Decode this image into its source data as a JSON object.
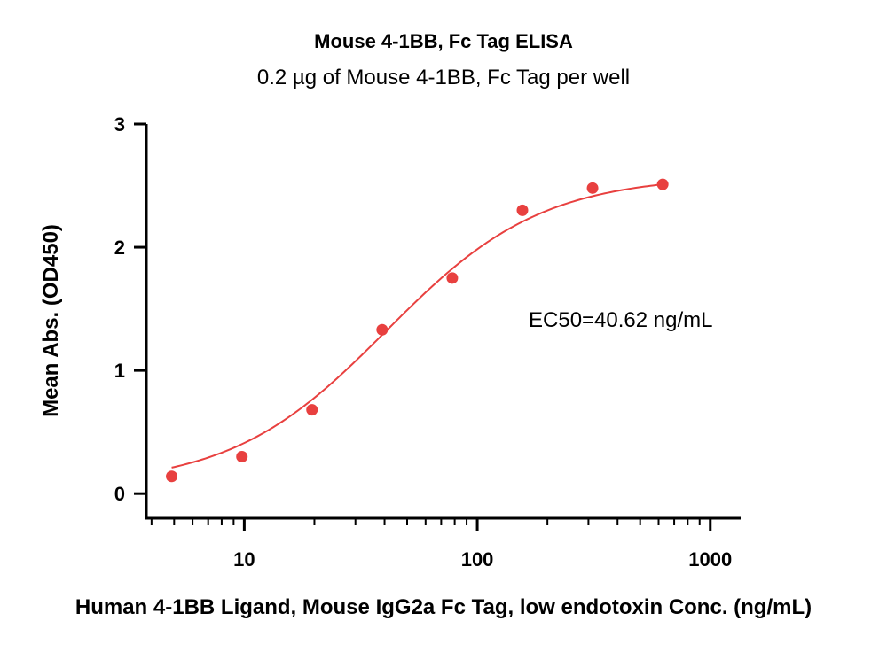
{
  "chart_data": {
    "type": "scatter",
    "title": "Mouse 4-1BB, Fc Tag ELISA",
    "subtitle": "0.2 µg of Mouse 4-1BB, Fc Tag per well",
    "xlabel": "Human 4-1BB Ligand, Mouse IgG2a Fc Tag, low endotoxin Conc. (ng/mL)",
    "ylabel": "Mean Abs. (OD450)",
    "xscale": "log",
    "xlim": [
      3.8,
      1350
    ],
    "ylim": [
      -0.2,
      3
    ],
    "xticks": [
      10,
      100,
      1000
    ],
    "xtick_labels": [
      "10",
      "100",
      "1000"
    ],
    "yticks": [
      0,
      1,
      2,
      3
    ],
    "ytick_labels": [
      "0",
      "1",
      "2",
      "3"
    ],
    "grid": false,
    "legend": "none",
    "annotation": "EC50=40.62 ng/mL",
    "colors": {
      "series": "#e8403f",
      "axis": "#000000"
    },
    "series": [
      {
        "points": [
          {
            "x": 4.88,
            "y": 0.14
          },
          {
            "x": 9.77,
            "y": 0.3
          },
          {
            "x": 19.53,
            "y": 0.68
          },
          {
            "x": 39.06,
            "y": 1.33
          },
          {
            "x": 78.13,
            "y": 1.75
          },
          {
            "x": 156.25,
            "y": 2.3
          },
          {
            "x": 312.5,
            "y": 2.48
          },
          {
            "x": 625,
            "y": 2.51
          }
        ],
        "fit": {
          "model": "4PL",
          "bottom": 0.06,
          "top": 2.58,
          "ec50": 40.62,
          "hill": 1.3
        }
      }
    ]
  }
}
